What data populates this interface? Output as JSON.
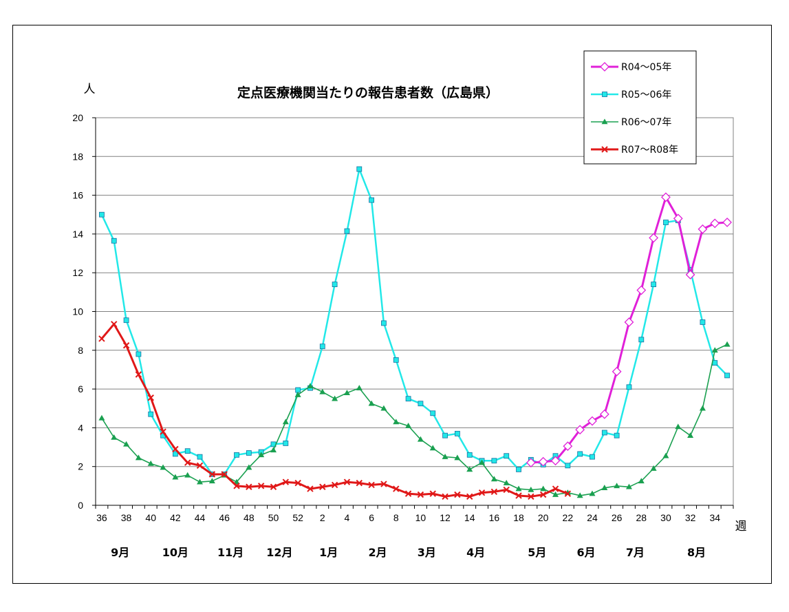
{
  "chart_data": {
    "type": "line",
    "title": "定点医療機関当たりの報告患者数（広島県）",
    "ylabel": "人",
    "xlabel": "週",
    "ylim": [
      0,
      20
    ],
    "y_ticks": [
      0,
      2,
      4,
      6,
      8,
      10,
      12,
      14,
      16,
      18,
      20
    ],
    "grid": true,
    "legend_position": "top-right",
    "week_order": [
      36,
      37,
      38,
      39,
      40,
      41,
      42,
      43,
      44,
      45,
      46,
      47,
      48,
      49,
      50,
      51,
      52,
      1,
      2,
      3,
      4,
      5,
      6,
      7,
      8,
      9,
      10,
      11,
      12,
      13,
      14,
      15,
      16,
      17,
      18,
      19,
      20,
      21,
      22,
      23,
      24,
      25,
      26,
      27,
      28,
      29,
      30,
      31,
      32,
      33,
      34,
      35
    ],
    "x_tick_labels": [
      "36",
      "38",
      "40",
      "42",
      "44",
      "46",
      "48",
      "50",
      "52",
      "2",
      "4",
      "6",
      "8",
      "10",
      "12",
      "14",
      "16",
      "18",
      "20",
      "22",
      "24",
      "26",
      "28",
      "30",
      "32",
      "34"
    ],
    "months": [
      {
        "label": "9月",
        "week": 37.5
      },
      {
        "label": "10月",
        "week": 42
      },
      {
        "label": "11月",
        "week": 46.5
      },
      {
        "label": "12月",
        "week": 50.5
      },
      {
        "label": "1月",
        "week": 2.5
      },
      {
        "label": "2月",
        "week": 6.5
      },
      {
        "label": "3月",
        "week": 10.5
      },
      {
        "label": "4月",
        "week": 14.5
      },
      {
        "label": "5月",
        "week": 19.5
      },
      {
        "label": "6月",
        "week": 23.5
      },
      {
        "label": "7月",
        "week": 27.5
      },
      {
        "label": "8月",
        "week": 32.5
      }
    ],
    "series": [
      {
        "name": "R04～05年",
        "color": "#e020d8",
        "marker": "diamond-open",
        "x": [
          19,
          20,
          21,
          22,
          23,
          24,
          25,
          26,
          27,
          28,
          29,
          30,
          31,
          32,
          33,
          34,
          35
        ],
        "y": [
          2.2,
          2.25,
          2.3,
          3.05,
          3.9,
          4.35,
          4.7,
          6.9,
          9.45,
          11.1,
          13.8,
          15.9,
          14.8,
          11.9,
          14.25,
          14.55,
          14.6
        ]
      },
      {
        "name": "R05～06年",
        "color": "#22e8e8",
        "marker": "square",
        "x": [
          36,
          37,
          38,
          39,
          40,
          41,
          42,
          43,
          44,
          45,
          46,
          47,
          48,
          49,
          50,
          51,
          52,
          1,
          2,
          3,
          4,
          5,
          6,
          7,
          8,
          9,
          10,
          11,
          12,
          13,
          14,
          15,
          16,
          17,
          18,
          19,
          20,
          21,
          22,
          23,
          24,
          25,
          26,
          27,
          28,
          29,
          30,
          31,
          32,
          33,
          34,
          35
        ],
        "y": [
          15.0,
          13.65,
          9.55,
          7.8,
          4.7,
          3.6,
          2.65,
          2.8,
          2.5,
          1.6,
          1.6,
          2.6,
          2.7,
          2.75,
          3.15,
          3.2,
          5.95,
          6.05,
          8.2,
          11.4,
          14.15,
          17.35,
          15.75,
          9.4,
          7.5,
          5.5,
          5.25,
          4.75,
          3.6,
          3.7,
          2.6,
          2.3,
          2.3,
          2.55,
          1.85,
          2.35,
          2.1,
          2.55,
          2.05,
          2.65,
          2.5,
          3.75,
          3.6,
          6.1,
          8.55,
          11.4,
          14.6,
          14.7,
          12.15,
          9.45,
          7.35,
          6.7
        ]
      },
      {
        "name": "R06～07年",
        "color": "#1aa050",
        "marker": "triangle",
        "x": [
          36,
          37,
          38,
          39,
          40,
          41,
          42,
          43,
          44,
          45,
          46,
          47,
          48,
          49,
          50,
          51,
          52,
          1,
          2,
          3,
          4,
          5,
          6,
          7,
          8,
          9,
          10,
          11,
          12,
          13,
          14,
          15,
          16,
          17,
          18,
          19,
          20,
          21,
          22,
          23,
          24,
          25,
          26,
          27,
          28,
          29,
          30,
          31,
          32,
          33,
          34,
          35
        ],
        "y": [
          4.5,
          3.5,
          3.15,
          2.45,
          2.15,
          1.95,
          1.45,
          1.55,
          1.2,
          1.25,
          1.55,
          1.2,
          1.95,
          2.6,
          2.85,
          4.3,
          5.7,
          6.15,
          5.85,
          5.5,
          5.8,
          6.05,
          5.25,
          5.0,
          4.3,
          4.1,
          3.4,
          2.95,
          2.5,
          2.45,
          1.85,
          2.2,
          1.35,
          1.15,
          0.85,
          0.8,
          0.85,
          0.55,
          0.65,
          0.5,
          0.6,
          0.9,
          1.0,
          0.95,
          1.25,
          1.9,
          2.55,
          4.05,
          3.6,
          5.0,
          8.0,
          8.3
        ]
      },
      {
        "name": "R07～R08年",
        "color": "#e01818",
        "marker": "x",
        "x": [
          36,
          37,
          38,
          39,
          40,
          41,
          42,
          43,
          44,
          45,
          46,
          47,
          48,
          49,
          50,
          51,
          52,
          1,
          2,
          3,
          4,
          5,
          6,
          7,
          8,
          9,
          10,
          11,
          12,
          13,
          14,
          15,
          16,
          17,
          18,
          19,
          20,
          21,
          22
        ],
        "y": [
          8.6,
          9.35,
          8.25,
          6.75,
          5.55,
          3.8,
          2.9,
          2.2,
          2.05,
          1.6,
          1.6,
          1.0,
          0.95,
          1.0,
          0.95,
          1.2,
          1.15,
          0.85,
          0.95,
          1.05,
          1.2,
          1.15,
          1.05,
          1.1,
          0.85,
          0.6,
          0.55,
          0.6,
          0.45,
          0.55,
          0.45,
          0.65,
          0.7,
          0.8,
          0.5,
          0.45,
          0.55,
          0.85,
          0.6
        ]
      }
    ]
  }
}
